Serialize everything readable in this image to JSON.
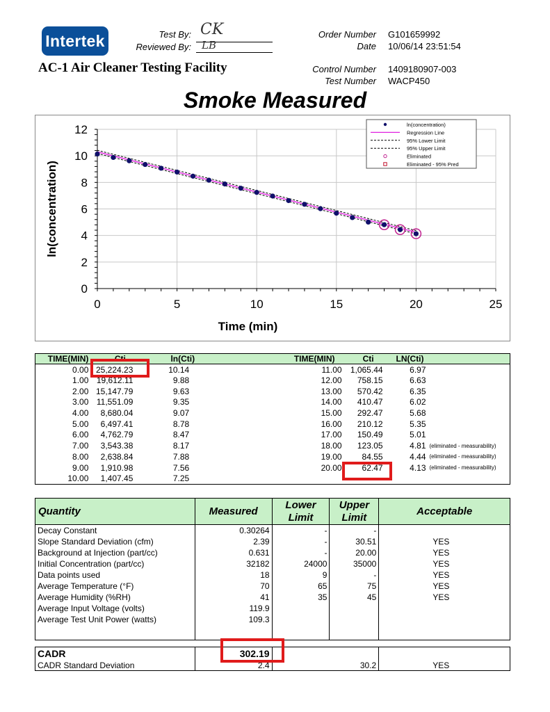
{
  "header": {
    "logo_text": "Intertek",
    "test_by_label": "Test By:",
    "test_by_initials": "CK",
    "reviewed_by_label": "Reviewed By:",
    "reviewed_by_initials": "LB",
    "order_number_label": "Order Number",
    "order_number": "G101659992",
    "date_label": "Date",
    "date": "10/06/14 23:51:54",
    "facility": "AC-1 Air Cleaner Testing Facility",
    "control_number_label": "Control Number",
    "control_number": "1409180907-003",
    "test_number_label": "Test Number",
    "test_number": "WACP450"
  },
  "page_title": "Smoke Measured",
  "chart_data": {
    "type": "scatter",
    "title": "Smoke Measured",
    "xlabel": "Time (min)",
    "ylabel": "ln(concentration)",
    "xlim": [
      0,
      25
    ],
    "ylim": [
      0,
      12
    ],
    "xticks": [
      0,
      5,
      10,
      15,
      20,
      25
    ],
    "yticks": [
      0,
      2,
      4,
      6,
      8,
      10,
      12
    ],
    "x": [
      0,
      1,
      2,
      3,
      4,
      5,
      6,
      7,
      8,
      9,
      10,
      11,
      12,
      13,
      14,
      15,
      16,
      17,
      18,
      19,
      20
    ],
    "y": [
      10.14,
      9.88,
      9.63,
      9.35,
      9.07,
      8.78,
      8.47,
      8.17,
      7.88,
      7.56,
      7.25,
      6.97,
      6.63,
      6.35,
      6.02,
      5.68,
      5.35,
      5.01,
      4.81,
      4.44,
      4.13
    ],
    "eliminated_x": [
      18,
      19,
      20
    ],
    "regression": {
      "intercept": 10.3,
      "slope": -0.30264
    },
    "band": 0.12,
    "legend_position": "top-right",
    "legend": [
      "ln(concentration)",
      "Regression Line",
      "95% Lower Limit",
      "95% Upper Limit",
      "Eliminated",
      "Eliminated - 95% Pred"
    ],
    "colors": {
      "points": "#10106a",
      "regression": "#e020e0",
      "eliminated": "#c0208f",
      "eliminated_pred": "#c0102a",
      "grid": "#c8c8c8"
    }
  },
  "data_table": {
    "headers": [
      "TIME(MIN)",
      "Cti",
      "ln(Cti)",
      "TIME(MIN)",
      "Cti",
      "LN(Cti)"
    ],
    "left_rows": [
      [
        "0.00",
        "25,224.23",
        "10.14"
      ],
      [
        "1.00",
        "19,612.11",
        "9.88"
      ],
      [
        "2.00",
        "15,147.79",
        "9.63"
      ],
      [
        "3.00",
        "11,551.09",
        "9.35"
      ],
      [
        "4.00",
        "8,680.04",
        "9.07"
      ],
      [
        "5.00",
        "6,497.41",
        "8.78"
      ],
      [
        "6.00",
        "4,762.79",
        "8.47"
      ],
      [
        "7.00",
        "3,543.38",
        "8.17"
      ],
      [
        "8.00",
        "2,638.84",
        "7.88"
      ],
      [
        "9.00",
        "1,910.98",
        "7.56"
      ],
      [
        "10.00",
        "1,407.45",
        "7.25"
      ]
    ],
    "right_rows": [
      [
        "11.00",
        "1,065.44",
        "6.97",
        ""
      ],
      [
        "12.00",
        "758.15",
        "6.63",
        ""
      ],
      [
        "13.00",
        "570.42",
        "6.35",
        ""
      ],
      [
        "14.00",
        "410.47",
        "6.02",
        ""
      ],
      [
        "15.00",
        "292.47",
        "5.68",
        ""
      ],
      [
        "16.00",
        "210.12",
        "5.35",
        ""
      ],
      [
        "17.00",
        "150.49",
        "5.01",
        ""
      ],
      [
        "18.00",
        "123.05",
        "4.81",
        "(eliminated - measurability)"
      ],
      [
        "19.00",
        "84.55",
        "4.44",
        "(eliminated - measurability)"
      ],
      [
        "20.00",
        "62.47",
        "4.13",
        "(eliminated - measurability)"
      ]
    ]
  },
  "quantity_table": {
    "headers": [
      "Quantity",
      "Measured",
      "Lower Limit",
      "Upper Limit",
      "Acceptable"
    ],
    "rows": [
      [
        "Decay Constant",
        "0.30264",
        "-",
        "-",
        ""
      ],
      [
        "Slope Standard Deviation (cfm)",
        "2.39",
        "-",
        "30.51",
        "YES"
      ],
      [
        "Background at Injection (part/cc)",
        "0.631",
        "-",
        "20.00",
        "YES"
      ],
      [
        "Initial Concentration (part/cc)",
        "32182",
        "24000",
        "35000",
        "YES"
      ],
      [
        "Data points used",
        "18",
        "9",
        "-",
        "YES"
      ],
      [
        "Average Temperature (°F)",
        "70",
        "65",
        "75",
        "YES"
      ],
      [
        "Average Humidity (%RH)",
        "41",
        "35",
        "45",
        "YES"
      ],
      [
        "Average Input Voltage (volts)",
        "119.9",
        "",
        "",
        ""
      ],
      [
        "Average Test Unit Power (watts)",
        "109.3",
        "",
        "",
        ""
      ]
    ]
  },
  "cadr_table": {
    "cadr_label": "CADR",
    "cadr_value": "302.19",
    "sd_label": "CADR Standard Deviation",
    "sd_value": "2.4",
    "sd_upper": "30.2",
    "sd_acceptable": "YES"
  },
  "highlight_color": "#e01b1b"
}
